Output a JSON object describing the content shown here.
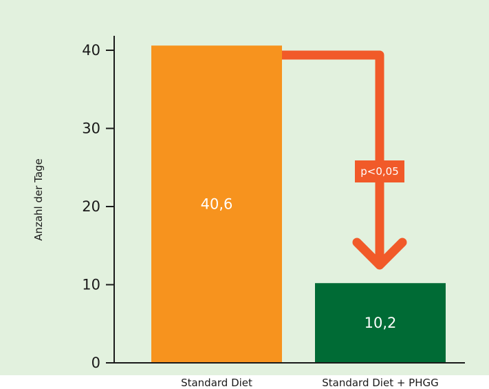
{
  "chart_data": {
    "type": "bar",
    "categories": [
      "Standard Diet",
      "Standard Diet + PHGG"
    ],
    "values": [
      40.6,
      10.2
    ],
    "value_labels": [
      "40,6",
      "10,2"
    ],
    "colors": [
      "#f7931e",
      "#006b35"
    ],
    "ylabel": "Anzahl der Tage",
    "ylim": [
      0,
      45
    ],
    "yticks": [
      0,
      10,
      20,
      30,
      40
    ],
    "ytick_labels": [
      "0",
      "10",
      "20",
      "30",
      "40"
    ],
    "grid": false,
    "annotation": {
      "text": "p<0,05",
      "color": "#f15a29"
    }
  },
  "colors": {
    "panel_background": "#e2f1de",
    "axis": "#1a1a1a"
  }
}
